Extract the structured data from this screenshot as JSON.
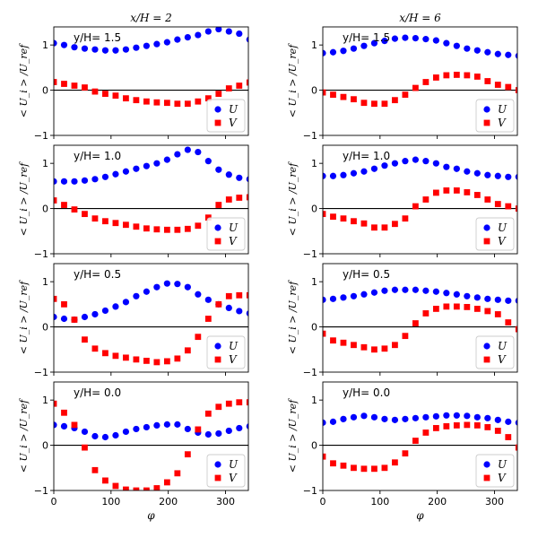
{
  "chart_data": {
    "type": "scatter",
    "layout": "4 rows x 2 columns",
    "column_titles": [
      "x/H = 2",
      "x/H = 6"
    ],
    "xlabel": "φ",
    "ylabel": "< U_i > /U_ref",
    "xlim": [
      0,
      340
    ],
    "ylim": [
      -1,
      1.4
    ],
    "xticks": [
      0,
      100,
      200,
      300
    ],
    "yticks": [
      -1,
      0,
      1
    ],
    "zero_line": true,
    "legend": {
      "placement": "lower right",
      "entries": [
        "U",
        "V"
      ]
    },
    "series_styles": {
      "U": {
        "marker": "circle",
        "color": "#0000ff"
      },
      "V": {
        "marker": "square",
        "color": "#ff0000"
      }
    },
    "x": [
      0,
      18,
      36,
      54,
      72,
      90,
      108,
      126,
      144,
      162,
      180,
      198,
      216,
      234,
      252,
      270,
      288,
      306,
      324,
      342
    ],
    "panels": [
      {
        "row": 0,
        "col": 0,
        "label": "y/H= 1.5",
        "U": [
          1.04,
          1.0,
          0.95,
          0.92,
          0.9,
          0.88,
          0.88,
          0.9,
          0.94,
          0.98,
          1.02,
          1.06,
          1.12,
          1.17,
          1.22,
          1.3,
          1.35,
          1.3,
          1.25,
          1.12
        ],
        "V": [
          0.18,
          0.14,
          0.1,
          0.06,
          -0.03,
          -0.08,
          -0.12,
          -0.18,
          -0.22,
          -0.25,
          -0.27,
          -0.28,
          -0.3,
          -0.3,
          -0.25,
          -0.18,
          -0.08,
          0.04,
          0.1,
          0.17
        ]
      },
      {
        "row": 0,
        "col": 1,
        "label": "y/H= 1.5",
        "U": [
          0.82,
          0.84,
          0.87,
          0.92,
          0.98,
          1.04,
          1.09,
          1.14,
          1.16,
          1.15,
          1.13,
          1.1,
          1.04,
          0.98,
          0.92,
          0.88,
          0.84,
          0.8,
          0.78,
          0.76
        ],
        "V": [
          -0.05,
          -0.1,
          -0.15,
          -0.2,
          -0.28,
          -0.3,
          -0.3,
          -0.22,
          -0.1,
          0.05,
          0.18,
          0.28,
          0.33,
          0.34,
          0.33,
          0.3,
          0.2,
          0.12,
          0.07,
          0.0
        ]
      },
      {
        "row": 1,
        "col": 0,
        "label": "y/H= 1.0",
        "U": [
          0.6,
          0.6,
          0.6,
          0.62,
          0.65,
          0.7,
          0.76,
          0.82,
          0.88,
          0.94,
          1.0,
          1.08,
          1.2,
          1.3,
          1.25,
          1.05,
          0.86,
          0.75,
          0.68,
          0.65
        ],
        "V": [
          0.18,
          0.08,
          -0.02,
          -0.12,
          -0.22,
          -0.28,
          -0.32,
          -0.36,
          -0.4,
          -0.44,
          -0.46,
          -0.47,
          -0.47,
          -0.45,
          -0.38,
          -0.2,
          0.08,
          0.2,
          0.24,
          0.25
        ]
      },
      {
        "row": 1,
        "col": 1,
        "label": "y/H= 1.0",
        "U": [
          0.72,
          0.72,
          0.74,
          0.78,
          0.82,
          0.88,
          0.95,
          1.0,
          1.05,
          1.08,
          1.05,
          1.0,
          0.92,
          0.88,
          0.82,
          0.78,
          0.74,
          0.72,
          0.7,
          0.7
        ],
        "V": [
          -0.12,
          -0.18,
          -0.22,
          -0.28,
          -0.33,
          -0.42,
          -0.42,
          -0.34,
          -0.22,
          0.05,
          0.2,
          0.35,
          0.4,
          0.4,
          0.36,
          0.3,
          0.2,
          0.1,
          0.05,
          0.0
        ]
      },
      {
        "row": 2,
        "col": 0,
        "label": "y/H= 0.5",
        "U": [
          0.22,
          0.18,
          0.16,
          0.22,
          0.28,
          0.36,
          0.45,
          0.55,
          0.68,
          0.78,
          0.88,
          0.96,
          0.95,
          0.88,
          0.72,
          0.6,
          0.5,
          0.42,
          0.35,
          0.3
        ],
        "V": [
          0.62,
          0.5,
          0.16,
          -0.28,
          -0.48,
          -0.58,
          -0.64,
          -0.68,
          -0.72,
          -0.75,
          -0.78,
          -0.76,
          -0.7,
          -0.52,
          -0.22,
          0.18,
          0.5,
          0.68,
          0.7,
          0.7
        ]
      },
      {
        "row": 2,
        "col": 1,
        "label": "y/H= 0.5",
        "U": [
          0.6,
          0.62,
          0.65,
          0.68,
          0.72,
          0.76,
          0.8,
          0.82,
          0.82,
          0.82,
          0.8,
          0.78,
          0.75,
          0.72,
          0.68,
          0.65,
          0.62,
          0.6,
          0.58,
          0.58
        ],
        "V": [
          -0.15,
          -0.3,
          -0.35,
          -0.4,
          -0.45,
          -0.5,
          -0.48,
          -0.4,
          -0.2,
          0.08,
          0.3,
          0.4,
          0.45,
          0.45,
          0.44,
          0.4,
          0.35,
          0.28,
          0.1,
          -0.05
        ]
      },
      {
        "row": 3,
        "col": 0,
        "label": "y/H= 0.0",
        "U": [
          0.45,
          0.42,
          0.38,
          0.3,
          0.2,
          0.18,
          0.22,
          0.3,
          0.36,
          0.4,
          0.44,
          0.46,
          0.46,
          0.36,
          0.28,
          0.24,
          0.26,
          0.32,
          0.38,
          0.42
        ],
        "V": [
          0.92,
          0.72,
          0.45,
          -0.05,
          -0.55,
          -0.78,
          -0.9,
          -0.98,
          -1.0,
          -1.0,
          -0.95,
          -0.82,
          -0.62,
          -0.2,
          0.35,
          0.7,
          0.85,
          0.92,
          0.95,
          0.95
        ]
      },
      {
        "row": 3,
        "col": 1,
        "label": "y/H= 0.0",
        "U": [
          0.5,
          0.52,
          0.58,
          0.62,
          0.65,
          0.62,
          0.58,
          0.56,
          0.58,
          0.6,
          0.62,
          0.64,
          0.66,
          0.66,
          0.65,
          0.62,
          0.6,
          0.56,
          0.52,
          0.5
        ],
        "V": [
          -0.25,
          -0.4,
          -0.45,
          -0.5,
          -0.52,
          -0.52,
          -0.5,
          -0.38,
          -0.18,
          0.1,
          0.28,
          0.38,
          0.42,
          0.44,
          0.45,
          0.44,
          0.4,
          0.32,
          0.18,
          -0.05
        ]
      }
    ]
  }
}
